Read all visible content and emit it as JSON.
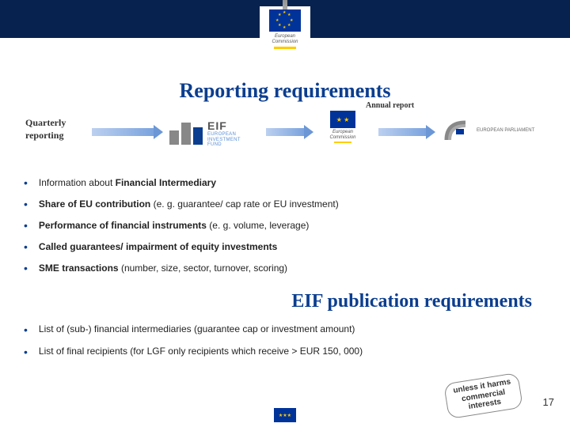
{
  "colors": {
    "header_bg": "#07224f",
    "title_color": "#0b3e8f",
    "eu_blue": "#003399",
    "eu_yellow": "#ffcc00",
    "text": "#222222"
  },
  "title1": "Reporting requirements",
  "quarterly_label": "Quarterly\nreporting",
  "annual_label": "Annual report",
  "eif": {
    "abbr": "EIF",
    "line1": "EUROPEAN",
    "line2": "INVESTMENT",
    "line3": "FUND"
  },
  "ec_label": {
    "l1": "European",
    "l2": "Commission"
  },
  "ep_label": {
    "l1": "EUROPEAN PARLIAMENT"
  },
  "bullets": [
    "Information about <b>Financial Intermediary</b>",
    "<b>Share of EU contribution</b> (e. g. guarantee/ cap rate or EU investment)",
    "<b>Performance of financial instruments</b> (e. g. volume, leverage)",
    "<b>Called guarantees/ impairment of equity investments</b>",
    "<b>SME transactions</b> (number, size, sector, turnover, scoring)"
  ],
  "title2": "EIF publication requirements",
  "bullets2": [
    "List of (sub-) financial intermediaries (guarantee cap or investment amount)",
    "List of final recipients (for LGF only recipients which receive > EUR 150, 000)"
  ],
  "badge": "unless it harms\ncommercial\ninterests",
  "page_number": "17"
}
